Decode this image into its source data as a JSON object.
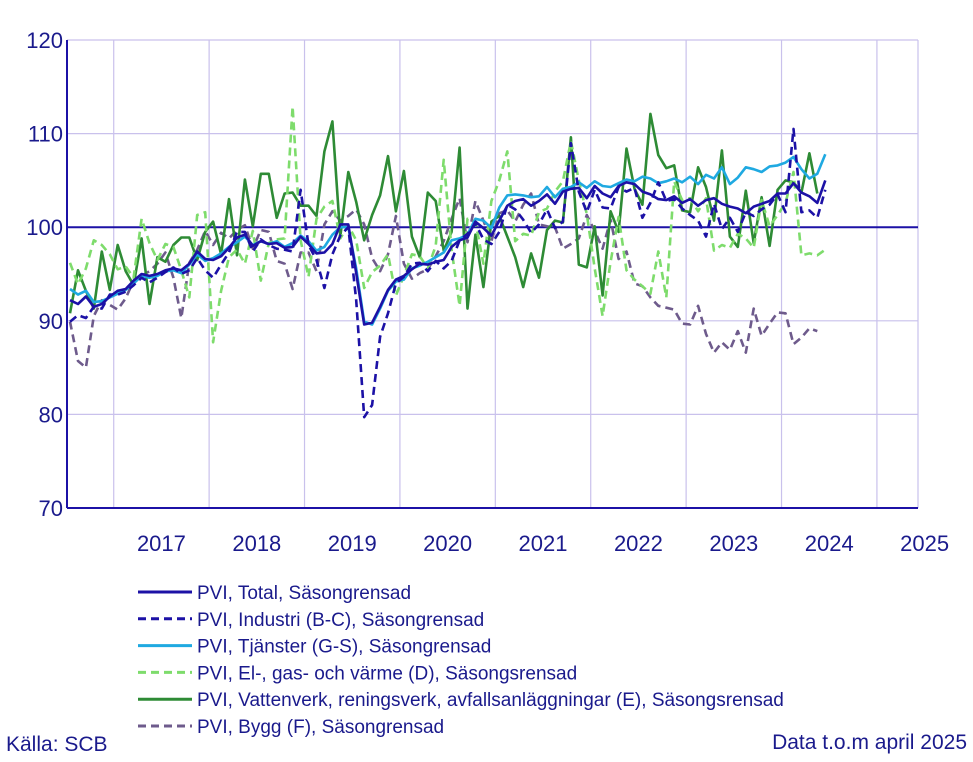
{
  "chart_data": {
    "type": "line",
    "xlabel": "",
    "ylabel": "",
    "ylim": [
      70,
      120
    ],
    "yticks": [
      70,
      80,
      90,
      100,
      110,
      120
    ],
    "x_tick_labels": [
      "2017",
      "2018",
      "2019",
      "2020",
      "2021",
      "2022",
      "2023",
      "2024",
      "2025"
    ],
    "x_start": "2016-07",
    "reference_line": 100,
    "grid": true,
    "legend_position": "bottom-left",
    "series": [
      {
        "name": "PVI, Total, Säsongrensad",
        "color": "#1c11a6",
        "dash": "solid",
        "values": [
          92.2,
          91.8,
          92.6,
          91.5,
          91.8,
          92.6,
          93.2,
          93.4,
          94.3,
          95.0,
          94.8,
          95.0,
          95.4,
          95.6,
          95.4,
          96.1,
          97.4,
          96.6,
          96.5,
          96.9,
          97.8,
          98.9,
          99.2,
          98.0,
          98.5,
          98.2,
          98.3,
          97.8,
          97.9,
          99.0,
          98.2,
          97.2,
          97.3,
          98.2,
          100.3,
          100.3,
          95.1,
          89.6,
          89.8,
          91.5,
          93.3,
          94.4,
          94.8,
          95.5,
          96.1,
          96.0,
          96.3,
          96.5,
          97.9,
          98.6,
          98.9,
          100.6,
          99.9,
          99.1,
          100.7,
          102.3,
          102.8,
          103.0,
          102.3,
          102.8,
          103.5,
          102.5,
          103.8,
          104.1,
          104.2,
          103.1,
          104.4,
          103.6,
          103.2,
          104.4,
          104.8,
          104.6,
          103.8,
          103.5,
          103.0,
          102.9,
          103.3,
          102.6,
          103.0,
          102.3,
          102.9,
          103.1,
          102.5,
          102.2,
          102.0,
          101.5,
          102.2,
          102.5,
          102.8,
          103.6,
          103.6,
          104.7,
          103.7,
          103.3,
          102.6,
          105.0
        ]
      },
      {
        "name": "PVI, Industri (B-C), Säsongrensad",
        "color": "#1c11a6",
        "dash": "dashed",
        "values": [
          89.9,
          90.6,
          90.3,
          91.5,
          91.3,
          92.8,
          92.8,
          93.1,
          93.8,
          94.6,
          94.1,
          94.6,
          95.2,
          95.7,
          95.0,
          95.4,
          96.7,
          95.4,
          94.6,
          96.0,
          97.3,
          99.5,
          99.5,
          97.4,
          98.7,
          98.1,
          97.7,
          97.6,
          97.4,
          104.0,
          98.1,
          96.5,
          93.5,
          97.1,
          99.1,
          100.0,
          92.2,
          79.7,
          81.0,
          88.3,
          90.8,
          94.0,
          94.7,
          96.1,
          96.2,
          95.3,
          96.4,
          95.6,
          96.4,
          98.6,
          99.3,
          100.4,
          98.7,
          98.2,
          99.5,
          102.4,
          101.9,
          100.8,
          99.4,
          100.3,
          101.9,
          99.9,
          100.6,
          109.0,
          103.8,
          101.6,
          104.0,
          102.1,
          102.0,
          104.3,
          103.8,
          104.2,
          101.0,
          102.6,
          104.8,
          102.8,
          103.0,
          102.0,
          101.3,
          100.7,
          99.0,
          102.5,
          99.8,
          101.0,
          99.5,
          101.6,
          101.2,
          101.9,
          102.4,
          103.5,
          101.6,
          110.5,
          101.6,
          101.8,
          101.0,
          104.0
        ]
      },
      {
        "name": "PVI, Tjänster (G-S), Säsongrensad",
        "color": "#1fa9e1",
        "dash": "solid",
        "values": [
          93.4,
          92.8,
          93.2,
          92.0,
          92.1,
          92.5,
          92.9,
          93.3,
          94.0,
          94.8,
          94.6,
          94.8,
          95.3,
          95.4,
          95.1,
          96.0,
          97.1,
          96.4,
          96.7,
          97.2,
          97.9,
          98.4,
          99.0,
          98.1,
          98.5,
          98.2,
          98.5,
          97.9,
          98.3,
          99.1,
          98.5,
          97.5,
          97.9,
          99.2,
          100.0,
          100.0,
          95.6,
          89.9,
          89.6,
          91.3,
          93.2,
          94.2,
          94.4,
          95.6,
          95.9,
          96.3,
          96.8,
          97.3,
          98.6,
          98.8,
          99.2,
          100.9,
          100.7,
          99.9,
          102.1,
          103.4,
          103.5,
          103.4,
          103.2,
          103.3,
          104.3,
          103.2,
          104.1,
          104.3,
          104.8,
          104.2,
          104.9,
          104.4,
          104.3,
          104.7,
          105.1,
          104.9,
          105.4,
          105.2,
          104.7,
          104.9,
          105.2,
          104.8,
          105.4,
          104.6,
          105.6,
          105.2,
          106.4,
          104.6,
          105.3,
          106.4,
          106.2,
          105.9,
          106.5,
          106.6,
          106.9,
          107.5,
          106.2,
          105.2,
          105.7,
          107.8
        ]
      },
      {
        "name": "PVI, El-, gas- och värme (D), Säsongsrensad",
        "color": "#7edc6c",
        "dash": "dashed",
        "values": [
          96.2,
          93.9,
          95.6,
          98.6,
          98.1,
          97.1,
          95.5,
          95.8,
          94.6,
          100.9,
          98.3,
          96.5,
          98.2,
          97.9,
          95.4,
          92.5,
          101.3,
          101.6,
          87.7,
          93.2,
          96.8,
          97.6,
          96.1,
          99.6,
          94.3,
          98.3,
          98.7,
          98.8,
          112.9,
          98.6,
          94.7,
          100.9,
          102.2,
          102.8,
          98.8,
          100.2,
          98.6,
          93.5,
          95.2,
          95.9,
          97.1,
          92.7,
          94.8,
          97.1,
          96.9,
          95.6,
          98.0,
          107.2,
          97.6,
          91.6,
          100.9,
          100.6,
          96.1,
          102.8,
          105.0,
          108.1,
          98.5,
          99.3,
          99.1,
          101.6,
          102.0,
          103.8,
          104.9,
          109.2,
          105.0,
          101.4,
          95.6,
          90.5,
          96.3,
          101.1,
          95.4,
          94.4,
          93.7,
          92.9,
          97.4,
          92.5,
          104.9,
          102.9,
          103.1,
          101.7,
          103.1,
          97.5,
          98.1,
          97.8,
          99.3,
          98.8,
          97.8,
          102.9,
          100.1,
          101.3,
          102.6,
          105.9,
          97.0,
          97.2,
          97.0,
          97.6
        ]
      },
      {
        "name": "PVI, Vattenverk, reningsverk, avfallsanläggningar (E), Säsongsrensad",
        "color": "#2e8b35",
        "dash": "solid",
        "values": [
          90.8,
          95.4,
          93.2,
          91.3,
          97.4,
          93.3,
          98.1,
          95.3,
          93.8,
          98.8,
          91.8,
          96.8,
          96.3,
          98.1,
          98.9,
          98.9,
          96.5,
          99.5,
          100.6,
          97.1,
          103.0,
          97.0,
          105.1,
          100.1,
          105.7,
          105.7,
          101.0,
          103.6,
          103.7,
          102.3,
          102.3,
          101.2,
          108.1,
          111.3,
          99.0,
          105.9,
          102.7,
          98.6,
          101.3,
          103.4,
          107.6,
          101.7,
          106.0,
          99.0,
          96.8,
          103.7,
          102.8,
          97.5,
          99.5,
          108.5,
          91.3,
          99.2,
          93.6,
          100.6,
          101.2,
          99.0,
          96.8,
          93.6,
          97.2,
          94.6,
          99.7,
          100.7,
          100.5,
          109.6,
          96.0,
          95.7,
          100.1,
          92.7,
          101.7,
          99.5,
          108.4,
          104.1,
          102.4,
          112.1,
          107.7,
          106.3,
          106.6,
          101.8,
          101.6,
          106.4,
          104.3,
          100.7,
          108.2,
          99.0,
          97.9,
          103.9,
          98.3,
          103.2,
          98.0,
          104.0,
          105.0,
          104.8,
          103.7,
          107.9,
          103.6
        ]
      },
      {
        "name": "PVI, Bygg (F), Säsongrensad",
        "color": "#6e5b8c",
        "dash": "dashed",
        "values": [
          89.9,
          85.7,
          85.0,
          90.5,
          92.2,
          91.7,
          91.2,
          92.4,
          94.3,
          94.8,
          95.3,
          96.1,
          97.3,
          94.6,
          90.3,
          96.2,
          97.6,
          99.6,
          98.1,
          99.4,
          98.8,
          99.7,
          100.2,
          97.7,
          99.7,
          99.5,
          96.4,
          96.1,
          93.4,
          97.3,
          97.3,
          95.3,
          100.3,
          101.7,
          100.7,
          101.2,
          101.9,
          100.3,
          96.7,
          95.3,
          97.1,
          101.2,
          96.1,
          94.5,
          95.1,
          95.5,
          96.9,
          98.5,
          100.9,
          103.1,
          98.4,
          102.8,
          100.7,
          98.5,
          101.5,
          101.8,
          100.6,
          102.4,
          103.6,
          100.3,
          100.1,
          100.0,
          97.7,
          98.2,
          98.8,
          101.3,
          99.6,
          97.7,
          100.8,
          96.6,
          97.4,
          94.0,
          93.7,
          92.5,
          91.6,
          91.4,
          91.2,
          89.7,
          89.6,
          91.6,
          88.6,
          86.6,
          87.7,
          86.9,
          88.9,
          86.6,
          91.3,
          88.4,
          89.7,
          90.9,
          90.8,
          87.5,
          88.2,
          89.2,
          88.9
        ]
      }
    ]
  },
  "footer": {
    "source": "Källa: SCB",
    "note": "Data t.o.m april 2025"
  },
  "colors": {
    "axis": "#1c11a6",
    "grid": "#c9c1ec",
    "text": "#1a1a8c"
  }
}
